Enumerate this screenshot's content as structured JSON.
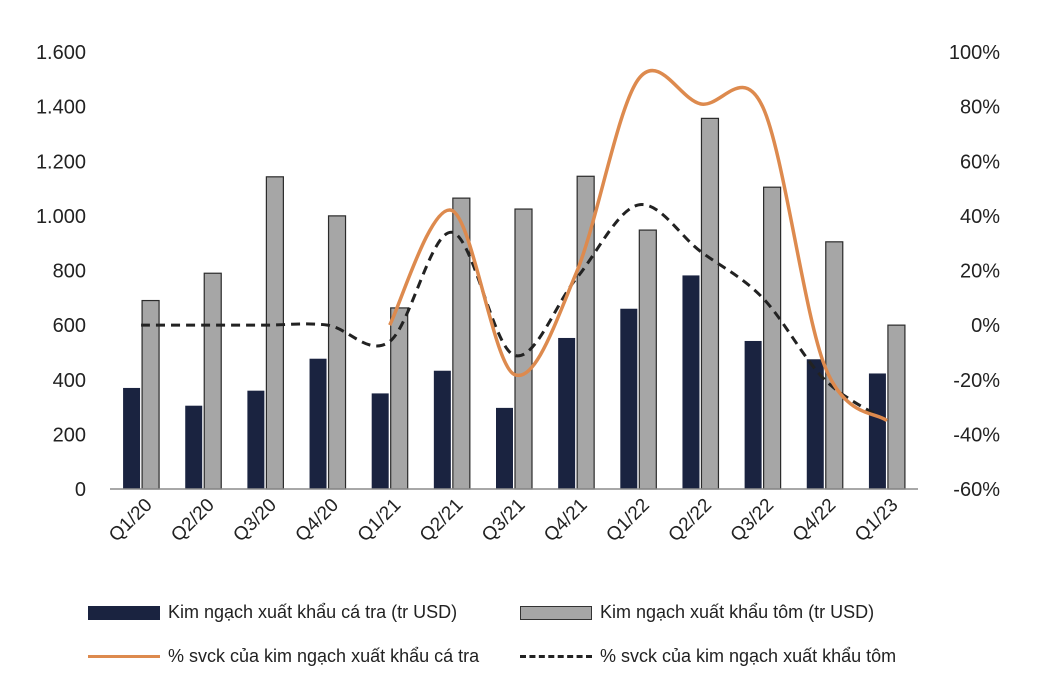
{
  "chart_data": {
    "type": "bar",
    "categories": [
      "Q1/20",
      "Q2/20",
      "Q3/20",
      "Q4/20",
      "Q1/21",
      "Q2/21",
      "Q3/21",
      "Q4/21",
      "Q1/22",
      "Q2/22",
      "Q3/22",
      "Q4/22",
      "Q1/23"
    ],
    "series": [
      {
        "name": "Kim ngạch xuất khẩu cá tra (tr USD)",
        "kind": "bar",
        "axis": "left",
        "color": "#1a2340",
        "values": [
          370,
          305,
          360,
          477,
          350,
          433,
          297,
          553,
          660,
          782,
          542,
          475,
          423
        ]
      },
      {
        "name": "Kim ngạch xuất khẩu tôm (tr USD)",
        "kind": "bar",
        "axis": "left",
        "color": "#a6a6a6",
        "values": [
          690,
          790,
          1143,
          1000,
          663,
          1065,
          1025,
          1145,
          948,
          1357,
          1105,
          905,
          600
        ]
      },
      {
        "name": "% svck của kim ngạch xuất khẩu cá tra",
        "kind": "line",
        "axis": "right",
        "color": "#dd8a4e",
        "values": [
          null,
          null,
          null,
          null,
          0,
          42,
          -18,
          19,
          90,
          81,
          80,
          -15,
          -35
        ]
      },
      {
        "name": "% svck của kim ngạch xuất khẩu tôm",
        "kind": "line-dashed",
        "axis": "right",
        "color": "#222222",
        "values": [
          0,
          0,
          0,
          0,
          -6,
          34,
          -11,
          17,
          44,
          27,
          10,
          -20,
          -35
        ]
      }
    ],
    "y_left": {
      "min": 0,
      "max": 1600,
      "ticks": [
        "0",
        "200",
        "400",
        "600",
        "800",
        "1.000",
        "1.200",
        "1.400",
        "1.600"
      ],
      "tick_values": [
        0,
        200,
        400,
        600,
        800,
        1000,
        1200,
        1400,
        1600
      ]
    },
    "y_right": {
      "min": -60,
      "max": 100,
      "ticks": [
        "-60%",
        "-40%",
        "-20%",
        "0%",
        "20%",
        "40%",
        "60%",
        "80%",
        "100%"
      ],
      "tick_values": [
        -60,
        -40,
        -20,
        0,
        20,
        40,
        60,
        80,
        100
      ]
    },
    "legend_position": "bottom",
    "grid": false
  }
}
